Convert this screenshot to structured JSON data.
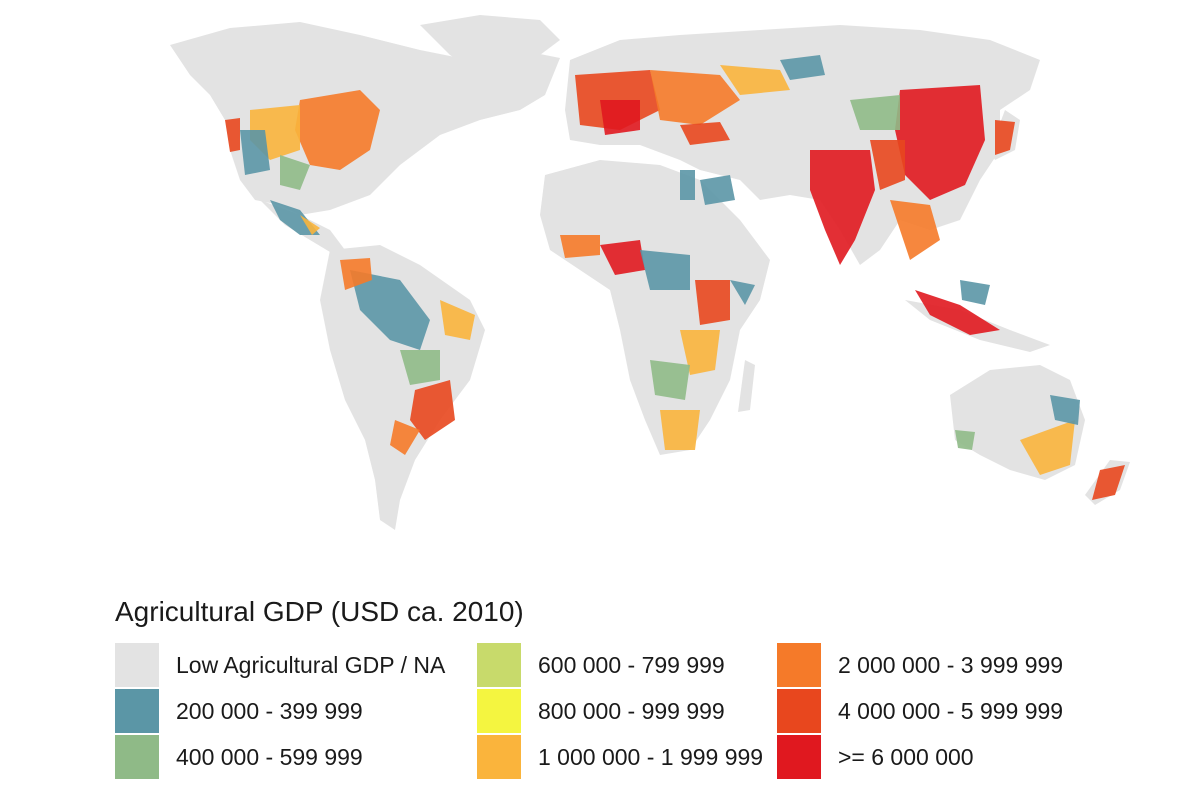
{
  "legend": {
    "title": "Agricultural GDP (USD ca. 2010)",
    "items": [
      {
        "label": "Low Agricultural GDP / NA",
        "color": "#e3e3e3"
      },
      {
        "label": "200 000 - 399 999",
        "color": "#5b96a6"
      },
      {
        "label": "400 000 - 599 999",
        "color": "#8fba87"
      },
      {
        "label": "600 000 - 799 999",
        "color": "#c8da6b"
      },
      {
        "label": "800 000 - 999 999",
        "color": "#f4f540"
      },
      {
        "label": "1 000 000 - 1 999 999",
        "color": "#fab43c"
      },
      {
        "label": "2 000 000 - 3 999 999",
        "color": "#f57a29"
      },
      {
        "label": "4 000 000 - 5 999 999",
        "color": "#e8471e"
      },
      {
        "label": ">= 6 000 000",
        "color": "#e0181f"
      }
    ]
  }
}
